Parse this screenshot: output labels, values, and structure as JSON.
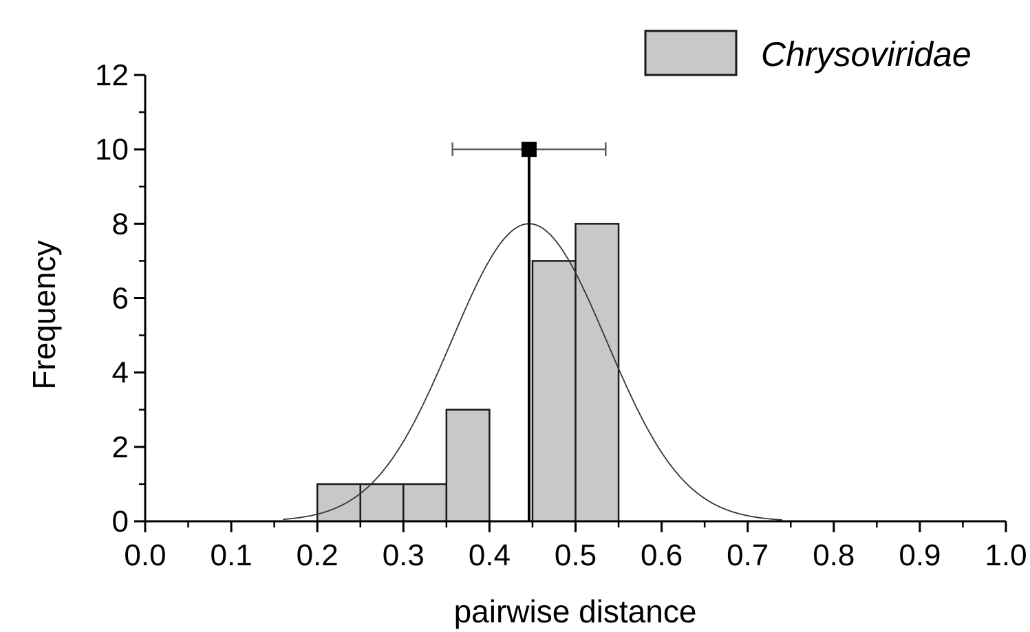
{
  "chart_data": {
    "type": "bar",
    "subtype": "histogram",
    "xlabel": "pairwise distance",
    "ylabel": "Frequency",
    "xlim": [
      0.0,
      1.0
    ],
    "ylim": [
      0,
      12
    ],
    "x_ticks": [
      "0.0",
      "0.1",
      "0.2",
      "0.3",
      "0.4",
      "0.5",
      "0.6",
      "0.7",
      "0.8",
      "0.9",
      "1.0"
    ],
    "y_ticks": [
      "0",
      "2",
      "4",
      "6",
      "8",
      "10",
      "12"
    ],
    "grid": false,
    "legend": {
      "position": "top-right",
      "label": "Chrysoviridae"
    },
    "bars": [
      {
        "x0": 0.2,
        "x1": 0.25,
        "value": 1
      },
      {
        "x0": 0.25,
        "x1": 0.3,
        "value": 1
      },
      {
        "x0": 0.3,
        "x1": 0.35,
        "value": 1
      },
      {
        "x0": 0.35,
        "x1": 0.4,
        "value": 3
      },
      {
        "x0": 0.4,
        "x1": 0.45,
        "value": 0
      },
      {
        "x0": 0.45,
        "x1": 0.5,
        "value": 7
      },
      {
        "x0": 0.5,
        "x1": 0.55,
        "value": 8
      }
    ],
    "normal_fit": {
      "mean": 0.446,
      "sd": 0.09,
      "peak": 8.0
    },
    "mean_marker": {
      "x": 0.446,
      "y": 10,
      "err_low": 0.357,
      "err_high": 0.535
    },
    "mean_line": {
      "x": 0.446,
      "y0": 0,
      "y1": 10
    },
    "colors": {
      "bar_fill": "#c8c8c8",
      "bar_edge": "#1a1a1a",
      "curve": "#2e3a2e",
      "errorbar": "#556655",
      "axis": "#000000"
    }
  }
}
